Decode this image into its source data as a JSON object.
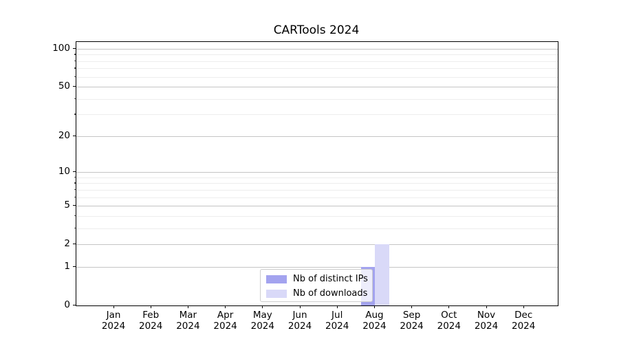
{
  "chart_data": {
    "type": "bar",
    "title": "CARTools 2024",
    "categories": [
      "Jan 2024",
      "Feb 2024",
      "Mar 2024",
      "Apr 2024",
      "May 2024",
      "Jun 2024",
      "Jul 2024",
      "Aug 2024",
      "Sep 2024",
      "Oct 2024",
      "Nov 2024",
      "Dec 2024"
    ],
    "series": [
      {
        "name": "Nb of distinct IPs",
        "color": "#a3a3ef",
        "values": [
          0,
          0,
          0,
          0,
          0,
          0,
          0,
          1,
          0,
          0,
          0,
          0
        ]
      },
      {
        "name": "Nb of downloads",
        "color": "#d9d9f8",
        "values": [
          0,
          0,
          0,
          0,
          0,
          0,
          0,
          2,
          0,
          0,
          0,
          0
        ]
      }
    ],
    "xlabel": "",
    "ylabel": "",
    "yaxis": {
      "scale": "log1p",
      "major_ticks": [
        0,
        1,
        2,
        5,
        10,
        20,
        50,
        100
      ],
      "minor_ticks": [
        3,
        4,
        6,
        7,
        8,
        9,
        30,
        40,
        60,
        70,
        80,
        90
      ],
      "ylim": [
        0,
        113
      ]
    },
    "grid": "horizontal",
    "legend_position": "lower center",
    "colors": {
      "major_grid": "#c4c4c4",
      "minor_grid": "#ededed",
      "axis": "#000000",
      "legend_border": "#cccccc",
      "background": "#ffffff"
    }
  }
}
